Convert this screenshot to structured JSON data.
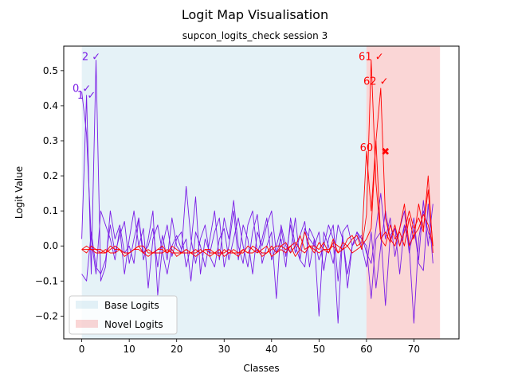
{
  "chart_data": {
    "type": "line",
    "title": "Logit Map Visualisation",
    "subtitle": "supcon_logits_check session 3",
    "xlabel": "Classes",
    "ylabel": "Logit Value",
    "xlim": [
      -3.8,
      79.5
    ],
    "ylim": [
      -0.265,
      0.57
    ],
    "x_ticks": [
      0,
      10,
      20,
      30,
      40,
      50,
      60,
      70
    ],
    "y_ticks": [
      -0.2,
      -0.1,
      0.0,
      0.1,
      0.2,
      0.3,
      0.4,
      0.5
    ],
    "y_tick_labels": [
      "−0.2",
      "−0.1",
      "0.0",
      "0.1",
      "0.2",
      "0.3",
      "0.4",
      "0.5"
    ],
    "regions": [
      {
        "name": "Base Logits",
        "x_start": 0,
        "x_end": 60,
        "color": "#add8e6",
        "opacity": 0.32
      },
      {
        "name": "Novel Logits",
        "x_start": 60,
        "x_end": 75.5,
        "color": "#f08080",
        "opacity": 0.32
      }
    ],
    "legend_position": "lower left",
    "series": [
      {
        "group": "base",
        "color": "#7a1de6",
        "values": [
          0.44,
          0.32,
          0.02,
          -0.08,
          0.1,
          0.06,
          0.02,
          -0.04,
          0.05,
          -0.08,
          0.02,
          0.1,
          0.0,
          0.05,
          -0.12,
          0.02,
          0.06,
          -0.02,
          -0.08,
          0.0,
          0.03,
          -0.01,
          0.02,
          -0.1,
          0.04,
          0.0,
          -0.06,
          0.02,
          0.1,
          -0.04,
          0.08,
          0.02,
          0.13,
          0.0,
          -0.05,
          0.06,
          0.1,
          -0.02,
          0.02,
          0.08,
          -0.04,
          0.0,
          0.05,
          -0.03,
          0.06,
          -0.02,
          0.03,
          0.07,
          -0.06,
          0.02,
          -0.04,
          0.0,
          0.06,
          0.02,
          -0.22,
          0.04,
          0.06,
          0.0,
          0.02,
          0.03,
          -0.02,
          -0.05,
          0.05,
          0.15,
          0.02,
          0.08,
          -0.03,
          0.05,
          0.1,
          -0.02,
          0.05,
          -0.04,
          0.13,
          0.0,
          0.12
        ]
      },
      {
        "group": "base",
        "color": "#7a1de6",
        "values": [
          0.02,
          0.43,
          -0.08,
          0.53,
          -0.1,
          -0.06,
          0.1,
          0.02,
          0.06,
          -0.02,
          0.0,
          -0.05,
          0.08,
          -0.04,
          0.02,
          0.1,
          -0.14,
          0.0,
          0.06,
          -0.03,
          0.02,
          0.04,
          -0.06,
          0.0,
          0.14,
          -0.08,
          0.02,
          -0.02,
          0.04,
          0.08,
          -0.06,
          0.0,
          0.1,
          -0.04,
          0.06,
          0.02,
          -0.08,
          0.04,
          0.0,
          0.06,
          0.1,
          -0.02,
          0.02,
          -0.06,
          0.08,
          0.0,
          -0.04,
          0.05,
          0.02,
          0.0,
          0.04,
          -0.07,
          0.02,
          0.06,
          -0.1,
          0.03,
          -0.12,
          0.0,
          0.04,
          0.02,
          0.0,
          -0.15,
          0.02,
          0.04,
          -0.17,
          0.03,
          0.05,
          -0.08,
          0.06,
          0.0,
          0.08,
          -0.05,
          -0.07,
          0.12,
          -0.05
        ]
      },
      {
        "group": "base",
        "color": "#7a1de6",
        "values": [
          -0.08,
          -0.1,
          0.04,
          -0.06,
          -0.08,
          -0.04,
          0.06,
          -0.02,
          0.03,
          0.07,
          -0.05,
          0.02,
          0.08,
          -0.02,
          0.0,
          0.05,
          -0.06,
          0.03,
          -0.04,
          0.08,
          0.0,
          -0.02,
          0.17,
          0.02,
          -0.05,
          0.02,
          0.06,
          -0.03,
          -0.06,
          0.02,
          0.05,
          -0.04,
          0.02,
          0.08,
          0.0,
          -0.06,
          0.04,
          0.09,
          -0.05,
          0.0,
          0.04,
          -0.15,
          0.06,
          0.0,
          -0.02,
          0.08,
          -0.04,
          -0.06,
          0.05,
          0.02,
          -0.2,
          0.04,
          0.0,
          -0.05,
          0.06,
          0.02,
          -0.08,
          0.0,
          0.04,
          0.0,
          -0.06,
          0.04,
          -0.12,
          0.0,
          0.1,
          0.02,
          0.05,
          0.0,
          0.06,
          0.0,
          -0.22,
          0.02,
          0.1,
          0.04,
          0.0
        ]
      },
      {
        "group": "novel",
        "color": "#ff0000",
        "values": [
          -0.01,
          -0.02,
          0.0,
          -0.01,
          -0.02,
          -0.02,
          -0.01,
          0.0,
          -0.01,
          -0.03,
          -0.02,
          -0.01,
          0.0,
          -0.02,
          -0.03,
          -0.02,
          -0.01,
          0.0,
          -0.02,
          -0.01,
          -0.03,
          -0.02,
          -0.01,
          -0.02,
          -0.03,
          -0.02,
          -0.01,
          -0.02,
          -0.02,
          -0.03,
          -0.01,
          -0.02,
          -0.01,
          -0.02,
          -0.02,
          0.0,
          -0.01,
          -0.02,
          -0.01,
          0.0,
          -0.03,
          -0.02,
          -0.01,
          -0.02,
          0.0,
          0.01,
          -0.01,
          -0.02,
          0.0,
          -0.01,
          -0.02,
          -0.01,
          -0.01,
          0.0,
          -0.02,
          -0.01,
          0.0,
          -0.02,
          -0.01,
          0.0,
          0.02,
          0.05,
          0.3,
          0.45,
          0.08,
          0.02,
          0.0,
          0.05,
          0.12,
          0.0,
          0.03,
          0.05,
          0.09,
          0.06,
          0.0
        ]
      },
      {
        "group": "novel",
        "color": "#ff0000",
        "values": [
          -0.01,
          0.0,
          -0.01,
          -0.01,
          -0.01,
          -0.02,
          0.0,
          -0.01,
          -0.01,
          -0.02,
          -0.02,
          -0.01,
          0.0,
          0.0,
          -0.02,
          -0.02,
          -0.01,
          -0.01,
          -0.02,
          0.0,
          -0.01,
          -0.02,
          -0.02,
          -0.02,
          -0.01,
          -0.02,
          -0.01,
          -0.01,
          -0.02,
          -0.02,
          -0.02,
          -0.01,
          -0.02,
          -0.02,
          -0.01,
          -0.02,
          0.0,
          -0.01,
          -0.02,
          -0.02,
          -0.01,
          0.0,
          0.0,
          0.01,
          -0.02,
          0.0,
          0.03,
          -0.01,
          0.0,
          0.0,
          -0.01,
          0.01,
          -0.02,
          0.02,
          -0.02,
          0.01,
          0.0,
          0.02,
          0.03,
          -0.01,
          0.09,
          0.53,
          0.18,
          0.02,
          0.0,
          0.06,
          0.02,
          0.04,
          0.0,
          0.08,
          0.02,
          0.12,
          0.05,
          0.16,
          0.0
        ]
      },
      {
        "group": "novel",
        "color": "#ff0000",
        "values": [
          -0.01,
          -0.01,
          -0.01,
          -0.02,
          -0.02,
          -0.01,
          -0.02,
          -0.02,
          -0.01,
          -0.02,
          -0.02,
          -0.01,
          -0.01,
          -0.02,
          -0.01,
          -0.02,
          -0.02,
          -0.02,
          -0.01,
          -0.02,
          -0.02,
          -0.02,
          -0.01,
          -0.02,
          -0.02,
          -0.01,
          -0.02,
          -0.03,
          -0.02,
          -0.01,
          -0.03,
          -0.02,
          -0.02,
          -0.03,
          -0.01,
          -0.02,
          -0.02,
          -0.01,
          -0.03,
          -0.02,
          0.0,
          -0.02,
          0.0,
          -0.01,
          0.0,
          -0.03,
          -0.01,
          0.04,
          0.0,
          -0.02,
          0.01,
          -0.01,
          -0.02,
          0.01,
          0.0,
          -0.01,
          0.02,
          0.03,
          0.0,
          0.01,
          0.27,
          0.1,
          0.3,
          0.02,
          0.04,
          0.01,
          0.06,
          0.0,
          0.04,
          0.1,
          0.05,
          0.08,
          0.04,
          0.2,
          -0.02
        ]
      }
    ],
    "annotations": [
      {
        "text": "0 ✓",
        "x": 0,
        "y": 0.44,
        "color": "#7a1de6"
      },
      {
        "text": "1 ✓",
        "x": 1,
        "y": 0.42,
        "color": "#7a1de6"
      },
      {
        "text": "2 ✓",
        "x": 2,
        "y": 0.53,
        "color": "#7a1de6"
      },
      {
        "text": "60",
        "x": 60,
        "y": 0.27,
        "color": "#ff0000"
      },
      {
        "text": "61 ✓",
        "x": 61,
        "y": 0.53,
        "color": "#ff0000"
      },
      {
        "text": "62 ✓",
        "x": 62,
        "y": 0.46,
        "color": "#ff0000"
      }
    ],
    "markers": [
      {
        "symbol": "✖",
        "x": 64,
        "y": 0.27,
        "color": "#ff0000"
      }
    ]
  }
}
